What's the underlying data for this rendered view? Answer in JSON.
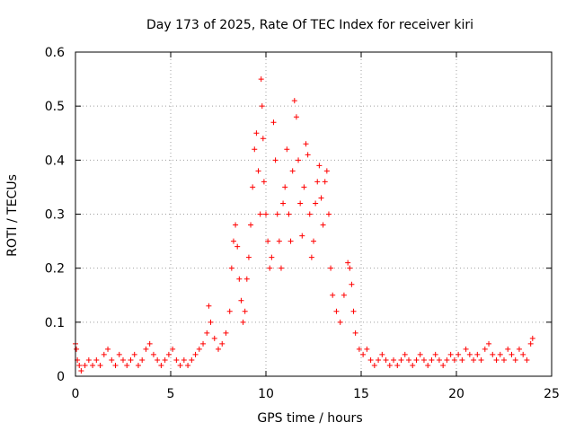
{
  "chart_data": {
    "type": "scatter",
    "title": "Day 173 of 2025, Rate Of TEC Index for receiver kiri",
    "xlabel": "GPS time / hours",
    "ylabel": "ROTI / TECUs",
    "xlim": [
      0,
      25
    ],
    "ylim": [
      0,
      0.6
    ],
    "xticks": [
      "0",
      "5",
      "10",
      "15",
      "20",
      "25"
    ],
    "yticks": [
      "0",
      "0.1",
      "0.2",
      "0.3",
      "0.4",
      "0.5",
      "0.6"
    ],
    "grid": true,
    "legend": "none",
    "marker": "plus",
    "color": "#ff0000",
    "series": [
      {
        "points": [
          [
            0.0,
            0.06
          ],
          [
            0.05,
            0.05
          ],
          [
            0.1,
            0.03
          ],
          [
            0.2,
            0.02
          ],
          [
            0.3,
            0.01
          ],
          [
            0.5,
            0.02
          ],
          [
            0.7,
            0.03
          ],
          [
            0.9,
            0.02
          ],
          [
            1.1,
            0.03
          ],
          [
            1.3,
            0.02
          ],
          [
            1.5,
            0.04
          ],
          [
            1.7,
            0.05
          ],
          [
            1.9,
            0.03
          ],
          [
            2.1,
            0.02
          ],
          [
            2.3,
            0.04
          ],
          [
            2.5,
            0.03
          ],
          [
            2.7,
            0.02
          ],
          [
            2.9,
            0.03
          ],
          [
            3.1,
            0.04
          ],
          [
            3.3,
            0.02
          ],
          [
            3.5,
            0.03
          ],
          [
            3.7,
            0.05
          ],
          [
            3.9,
            0.06
          ],
          [
            4.1,
            0.04
          ],
          [
            4.3,
            0.03
          ],
          [
            4.5,
            0.02
          ],
          [
            4.7,
            0.03
          ],
          [
            4.9,
            0.04
          ],
          [
            5.1,
            0.05
          ],
          [
            5.3,
            0.03
          ],
          [
            5.5,
            0.02
          ],
          [
            5.7,
            0.03
          ],
          [
            5.9,
            0.02
          ],
          [
            6.1,
            0.03
          ],
          [
            6.3,
            0.04
          ],
          [
            6.5,
            0.05
          ],
          [
            6.7,
            0.06
          ],
          [
            6.9,
            0.08
          ],
          [
            7.0,
            0.13
          ],
          [
            7.1,
            0.1
          ],
          [
            7.3,
            0.07
          ],
          [
            7.5,
            0.05
          ],
          [
            7.7,
            0.06
          ],
          [
            7.9,
            0.08
          ],
          [
            8.1,
            0.12
          ],
          [
            8.2,
            0.2
          ],
          [
            8.3,
            0.25
          ],
          [
            8.4,
            0.28
          ],
          [
            8.5,
            0.24
          ],
          [
            8.6,
            0.18
          ],
          [
            8.7,
            0.14
          ],
          [
            8.8,
            0.1
          ],
          [
            8.9,
            0.12
          ],
          [
            9.0,
            0.18
          ],
          [
            9.1,
            0.22
          ],
          [
            9.2,
            0.28
          ],
          [
            9.3,
            0.35
          ],
          [
            9.4,
            0.42
          ],
          [
            9.5,
            0.45
          ],
          [
            9.6,
            0.38
          ],
          [
            9.7,
            0.3
          ],
          [
            9.75,
            0.55
          ],
          [
            9.8,
            0.5
          ],
          [
            9.85,
            0.44
          ],
          [
            9.9,
            0.36
          ],
          [
            10.0,
            0.3
          ],
          [
            10.1,
            0.25
          ],
          [
            10.2,
            0.2
          ],
          [
            10.3,
            0.22
          ],
          [
            10.4,
            0.47
          ],
          [
            10.5,
            0.4
          ],
          [
            10.6,
            0.3
          ],
          [
            10.7,
            0.25
          ],
          [
            10.8,
            0.2
          ],
          [
            10.9,
            0.32
          ],
          [
            11.0,
            0.35
          ],
          [
            11.1,
            0.42
          ],
          [
            11.2,
            0.3
          ],
          [
            11.3,
            0.25
          ],
          [
            11.4,
            0.38
          ],
          [
            11.5,
            0.51
          ],
          [
            11.6,
            0.48
          ],
          [
            11.7,
            0.4
          ],
          [
            11.8,
            0.32
          ],
          [
            11.9,
            0.26
          ],
          [
            12.0,
            0.35
          ],
          [
            12.1,
            0.43
          ],
          [
            12.2,
            0.41
          ],
          [
            12.3,
            0.3
          ],
          [
            12.4,
            0.22
          ],
          [
            12.5,
            0.25
          ],
          [
            12.6,
            0.32
          ],
          [
            12.7,
            0.36
          ],
          [
            12.8,
            0.39
          ],
          [
            12.9,
            0.33
          ],
          [
            13.0,
            0.28
          ],
          [
            13.1,
            0.36
          ],
          [
            13.2,
            0.38
          ],
          [
            13.3,
            0.3
          ],
          [
            13.4,
            0.2
          ],
          [
            13.5,
            0.15
          ],
          [
            13.7,
            0.12
          ],
          [
            13.9,
            0.1
          ],
          [
            14.1,
            0.15
          ],
          [
            14.3,
            0.21
          ],
          [
            14.4,
            0.2
          ],
          [
            14.5,
            0.17
          ],
          [
            14.6,
            0.12
          ],
          [
            14.7,
            0.08
          ],
          [
            14.9,
            0.05
          ],
          [
            15.1,
            0.04
          ],
          [
            15.3,
            0.05
          ],
          [
            15.5,
            0.03
          ],
          [
            15.7,
            0.02
          ],
          [
            15.9,
            0.03
          ],
          [
            16.1,
            0.04
          ],
          [
            16.3,
            0.03
          ],
          [
            16.5,
            0.02
          ],
          [
            16.7,
            0.03
          ],
          [
            16.9,
            0.02
          ],
          [
            17.1,
            0.03
          ],
          [
            17.3,
            0.04
          ],
          [
            17.5,
            0.03
          ],
          [
            17.7,
            0.02
          ],
          [
            17.9,
            0.03
          ],
          [
            18.1,
            0.04
          ],
          [
            18.3,
            0.03
          ],
          [
            18.5,
            0.02
          ],
          [
            18.7,
            0.03
          ],
          [
            18.9,
            0.04
          ],
          [
            19.1,
            0.03
          ],
          [
            19.3,
            0.02
          ],
          [
            19.5,
            0.03
          ],
          [
            19.7,
            0.04
          ],
          [
            19.9,
            0.03
          ],
          [
            20.1,
            0.04
          ],
          [
            20.3,
            0.03
          ],
          [
            20.5,
            0.05
          ],
          [
            20.7,
            0.04
          ],
          [
            20.9,
            0.03
          ],
          [
            21.1,
            0.04
          ],
          [
            21.3,
            0.03
          ],
          [
            21.5,
            0.05
          ],
          [
            21.7,
            0.06
          ],
          [
            21.9,
            0.04
          ],
          [
            22.1,
            0.03
          ],
          [
            22.3,
            0.04
          ],
          [
            22.5,
            0.03
          ],
          [
            22.7,
            0.05
          ],
          [
            22.9,
            0.04
          ],
          [
            23.1,
            0.03
          ],
          [
            23.3,
            0.05
          ],
          [
            23.5,
            0.04
          ],
          [
            23.7,
            0.03
          ],
          [
            23.9,
            0.06
          ],
          [
            24.0,
            0.07
          ]
        ]
      }
    ]
  }
}
